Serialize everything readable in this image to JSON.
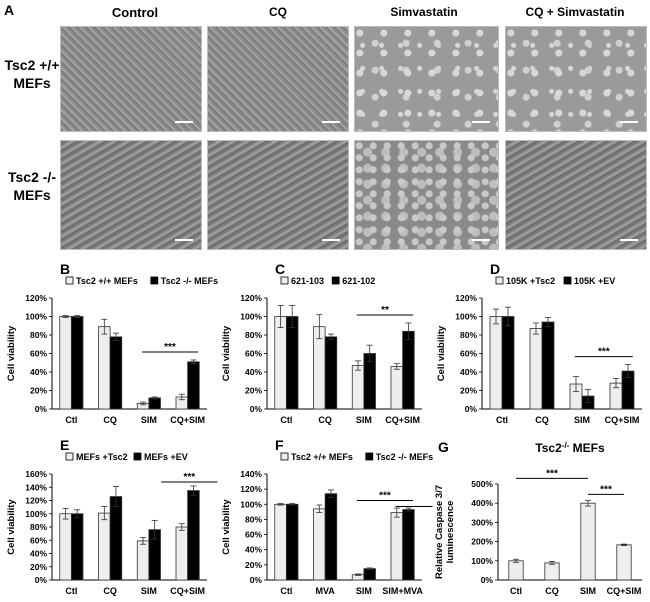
{
  "figure": {
    "panel_A": {
      "letter": "A",
      "columns": [
        "Control",
        "CQ",
        "Simvastatin",
        "CQ + Simvastatin"
      ],
      "rows": [
        {
          "line1": "Tsc2  +/+",
          "line2": "MEFs"
        },
        {
          "line1": "Tsc2  -/-",
          "line2": "MEFs"
        }
      ]
    }
  },
  "chart_data": [
    {
      "panel": "B",
      "type": "bar",
      "categories": [
        "Ctl",
        "CQ",
        "SIM",
        "CQ+SIM"
      ],
      "ylabel": "Cell viability",
      "yticks": [
        "0%",
        "20%",
        "40%",
        "60%",
        "80%",
        "100%",
        "120%"
      ],
      "ylim": [
        0,
        120
      ],
      "series": [
        {
          "name": "Tsc2 +/+ MEFs",
          "color": "#eeeeee",
          "values": [
            100,
            89,
            6,
            13
          ],
          "errors": [
            1,
            8,
            1.5,
            3
          ]
        },
        {
          "name": "Tsc2 -/- MEFs",
          "color": "#000000",
          "values": [
            100,
            78,
            12,
            51
          ],
          "errors": [
            1,
            4,
            1,
            2
          ]
        }
      ],
      "significance": [
        {
          "label": "***",
          "from": 2,
          "to": 3
        }
      ]
    },
    {
      "panel": "C",
      "type": "bar",
      "categories": [
        "Ctl",
        "CQ",
        "SIM",
        "CQ+SIM"
      ],
      "ylabel": "Cell viability",
      "yticks": [
        "0%",
        "20%",
        "40%",
        "60%",
        "80%",
        "100%",
        "120%"
      ],
      "ylim": [
        0,
        120
      ],
      "series": [
        {
          "name": "621-103",
          "color": "#eeeeee",
          "values": [
            100,
            89,
            47,
            46
          ],
          "errors": [
            12,
            13,
            5,
            3
          ]
        },
        {
          "name": "621-102",
          "color": "#000000",
          "values": [
            100,
            78,
            60,
            84
          ],
          "errors": [
            12,
            3,
            9,
            9
          ]
        }
      ],
      "significance": [
        {
          "label": "**",
          "from": 2,
          "to": 3
        }
      ]
    },
    {
      "panel": "D",
      "type": "bar",
      "categories": [
        "Ctl",
        "CQ",
        "SIM",
        "CQ+SIM"
      ],
      "ylabel": "Cell viability",
      "yticks": [
        "0%",
        "20%",
        "40%",
        "60%",
        "80%",
        "100%",
        "120%"
      ],
      "ylim": [
        0,
        120
      ],
      "series": [
        {
          "name": "105K +Tsc2",
          "color": "#eeeeee",
          "values": [
            100,
            87,
            27,
            28
          ],
          "errors": [
            8,
            6,
            8,
            5
          ]
        },
        {
          "name": "105K +EV",
          "color": "#000000",
          "values": [
            100,
            94,
            14,
            41
          ],
          "errors": [
            10,
            5,
            7,
            7
          ]
        }
      ],
      "significance": [
        {
          "label": "***",
          "from": 2,
          "to": 3
        }
      ]
    },
    {
      "panel": "E",
      "type": "bar",
      "categories": [
        "Ctl",
        "CQ",
        "SIM",
        "CQ+SIM"
      ],
      "ylabel": "Cell viability",
      "yticks": [
        "0%",
        "20%",
        "40%",
        "60%",
        "80%",
        "100%",
        "120%",
        "140%",
        "160%"
      ],
      "ylim": [
        0,
        160
      ],
      "series": [
        {
          "name": "MEFs +Tsc2",
          "color": "#eeeeee",
          "values": [
            100,
            101,
            59,
            80
          ],
          "errors": [
            8,
            10,
            5,
            5
          ]
        },
        {
          "name": "MEFs +EV",
          "color": "#000000",
          "values": [
            100,
            126,
            76,
            135
          ],
          "errors": [
            6,
            15,
            14,
            7
          ]
        }
      ],
      "significance": [
        {
          "label": "***",
          "from": 2.5,
          "to": 3.5
        }
      ]
    },
    {
      "panel": "F",
      "type": "bar",
      "categories": [
        "Ctl",
        "MVA",
        "SIM",
        "SIM+MVA"
      ],
      "ylabel": "Cell viability",
      "yticks": [
        "0%",
        "20%",
        "40%",
        "60%",
        "80%",
        "100%",
        "120%",
        "140%"
      ],
      "ylim": [
        0,
        140
      ],
      "series": [
        {
          "name": "Tsc2 +/+ MEFs",
          "color": "#eeeeee",
          "values": [
            100,
            94,
            7,
            89
          ],
          "errors": [
            1,
            5,
            1,
            6
          ]
        },
        {
          "name": "Tsc2 -/- MEFs",
          "color": "#000000",
          "values": [
            100,
            114,
            15,
            93
          ],
          "errors": [
            1,
            5,
            1,
            2
          ]
        }
      ],
      "significance": [
        {
          "label": "***",
          "from": 2,
          "to": 3
        },
        {
          "label": "",
          "from": 3,
          "to": 3.5
        }
      ]
    },
    {
      "panel": "G",
      "type": "bar",
      "title": "Tsc2",
      "title_sup": "-/-",
      "title_suffix": " MEFs",
      "categories": [
        "Ctl",
        "CQ",
        "SIM",
        "CQ+SIM"
      ],
      "ylabel": "Relative Caspase 3/7",
      "ylabel2": "luminescence",
      "yticks": [
        "0%",
        "100%",
        "200%",
        "300%",
        "400%",
        "500%"
      ],
      "ylim": [
        0,
        500
      ],
      "series": [
        {
          "color": "#eeeeee",
          "values": [
            100,
            89,
            400,
            183
          ],
          "errors": [
            8,
            7,
            15,
            4
          ]
        }
      ],
      "significance": [
        {
          "label": "***",
          "from": 0,
          "to": 2
        },
        {
          "label": "***",
          "from": 2,
          "to": 3
        }
      ]
    }
  ]
}
